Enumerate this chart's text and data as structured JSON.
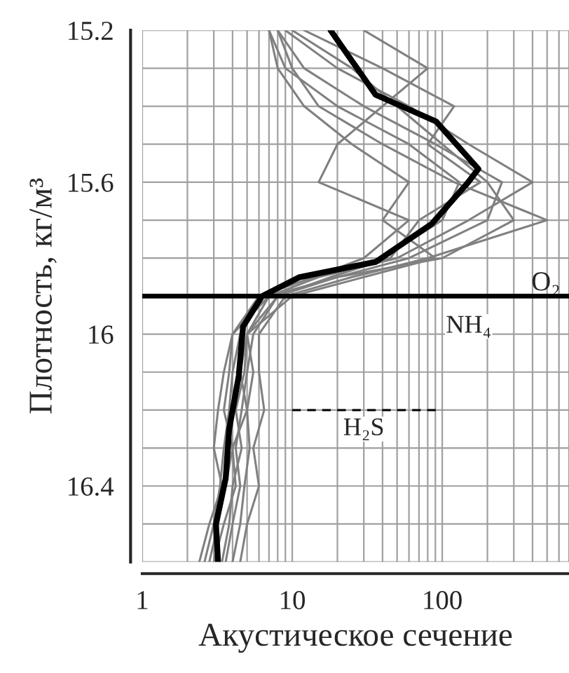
{
  "chart_data": {
    "type": "line",
    "xlabel": "Акустическое сечение",
    "ylabel": "Плотность, кг/м³",
    "log": "x",
    "grid": true,
    "marker": "none",
    "line_style": "solid",
    "xlim": [
      1,
      700
    ],
    "ylim": [
      16.6,
      15.2
    ],
    "xticks": [
      1,
      {
        "value": 2,
        "label": null
      },
      {
        "value": 3,
        "label": null
      },
      {
        "value": 4,
        "label": null
      },
      {
        "value": 5,
        "label": null
      },
      {
        "value": 6,
        "label": null
      },
      {
        "value": 7,
        "label": null
      },
      {
        "value": 8,
        "label": null
      },
      {
        "value": 9,
        "label": null
      },
      10,
      {
        "value": 20,
        "label": null
      },
      {
        "value": 30,
        "label": null
      },
      {
        "value": 40,
        "label": null
      },
      {
        "value": 50,
        "label": null
      },
      {
        "value": 60,
        "label": null
      },
      {
        "value": 70,
        "label": null
      },
      {
        "value": 80,
        "label": null
      },
      {
        "value": 90,
        "label": null
      },
      100,
      {
        "value": 200,
        "label": null
      },
      {
        "value": 300,
        "label": null
      },
      {
        "value": 400,
        "label": null
      },
      {
        "value": 500,
        "label": null
      },
      {
        "value": 600,
        "label": null
      },
      {
        "value": 700,
        "label": null
      }
    ],
    "yticks": [
      15.2,
      {
        "value": 15.3,
        "label": null
      },
      {
        "value": 15.4,
        "label": null
      },
      {
        "value": 15.5,
        "label": null
      },
      15.6,
      {
        "value": 15.7,
        "label": null
      },
      {
        "value": 15.8,
        "label": null
      },
      {
        "value": 15.9,
        "label": null
      },
      16,
      {
        "value": 16.1,
        "label": null
      },
      {
        "value": 16.2,
        "label": null
      },
      {
        "value": 16.3,
        "label": null
      },
      16.4,
      {
        "value": 16.5,
        "label": null
      },
      {
        "value": 16.6,
        "label": null
      }
    ],
    "series": [
      {
        "color": "#808080",
        "x": [
          8,
          12,
          30,
          90,
          250,
          200,
          60,
          20,
          8,
          5,
          4.5,
          5,
          4,
          4.2,
          3.5,
          3
        ],
        "values": [
          15.2,
          15.3,
          15.4,
          15.5,
          15.6,
          15.7,
          15.8,
          15.85,
          15.9,
          16.0,
          16.1,
          16.2,
          16.3,
          16.4,
          16.5,
          16.6
        ]
      },
      {
        "color": "#808080",
        "x": [
          7,
          9,
          20,
          60,
          130,
          100,
          40,
          12,
          6,
          4,
          3.8,
          3.5,
          4,
          3.6,
          3.2,
          2.8
        ],
        "values": [
          15.2,
          15.3,
          15.4,
          15.5,
          15.6,
          15.7,
          15.8,
          15.85,
          15.9,
          16.0,
          16.1,
          16.2,
          16.3,
          16.4,
          16.5,
          16.6
        ]
      },
      {
        "color": "#808080",
        "x": [
          9,
          20,
          60,
          150,
          400,
          150,
          50,
          15,
          7,
          5,
          5.5,
          5,
          5.2,
          4.8,
          4.5,
          4
        ],
        "values": [
          15.2,
          15.3,
          15.4,
          15.5,
          15.6,
          15.7,
          15.8,
          15.85,
          15.9,
          16.0,
          16.1,
          16.2,
          16.3,
          16.4,
          16.5,
          16.6
        ]
      },
      {
        "color": "#808080",
        "x": [
          8,
          10,
          15,
          40,
          120,
          500,
          80,
          25,
          9,
          6,
          6,
          6.5,
          5.5,
          6,
          5,
          4.5
        ],
        "values": [
          15.2,
          15.3,
          15.4,
          15.5,
          15.6,
          15.7,
          15.8,
          15.85,
          15.9,
          16.0,
          16.1,
          16.2,
          16.3,
          16.4,
          16.5,
          16.6
        ]
      },
      {
        "color": "#808080",
        "x": [
          30,
          80,
          40,
          20,
          15,
          60,
          30,
          14,
          6,
          4.5,
          4,
          3.8,
          3.5,
          3.3,
          3,
          2.6
        ],
        "values": [
          15.2,
          15.3,
          15.4,
          15.5,
          15.6,
          15.7,
          15.8,
          15.85,
          15.9,
          16.0,
          16.1,
          16.2,
          16.3,
          16.4,
          16.5,
          16.6
        ]
      },
      {
        "color": "#808080",
        "x": [
          10,
          25,
          50,
          100,
          200,
          300,
          100,
          20,
          7,
          4,
          3.5,
          3.2,
          3,
          3.4,
          2.8,
          2.4
        ],
        "values": [
          15.2,
          15.3,
          15.4,
          15.5,
          15.6,
          15.7,
          15.8,
          15.85,
          15.9,
          16.0,
          16.1,
          16.2,
          16.3,
          16.4,
          16.5,
          16.6
        ]
      },
      {
        "color": "#808080",
        "x": [
          7,
          8,
          12,
          25,
          60,
          40,
          90,
          30,
          10,
          5,
          4.8,
          4.2,
          4.6,
          4,
          3.8,
          3.4
        ],
        "values": [
          15.2,
          15.3,
          15.4,
          15.5,
          15.6,
          15.7,
          15.8,
          15.85,
          15.9,
          16.0,
          16.1,
          16.2,
          16.3,
          16.4,
          16.5,
          16.6
        ]
      },
      {
        "color": "#808080",
        "x": [
          12,
          40,
          120,
          80,
          180,
          70,
          45,
          18,
          8,
          5.5,
          5,
          4.6,
          4.2,
          4.5,
          4,
          3.6
        ],
        "values": [
          15.2,
          15.3,
          15.4,
          15.5,
          15.6,
          15.7,
          15.8,
          15.85,
          15.9,
          16.0,
          16.1,
          16.2,
          16.3,
          16.4,
          16.5,
          16.6
        ]
      },
      {
        "color": "#000000",
        "x": [
          18,
          36,
          91,
          174,
          149,
          85,
          36,
          11.2,
          6.3,
          4.7,
          4.4,
          3.8,
          3.6,
          3.1,
          3.2
        ],
        "values": [
          15.2,
          15.37,
          15.44,
          15.565,
          15.6,
          15.71,
          15.81,
          15.85,
          15.9,
          15.98,
          16.11,
          16.25,
          16.38,
          16.5,
          16.6
        ]
      },
      {
        "color": "#000000",
        "line_style": "dashed",
        "x": [
          10,
          100
        ],
        "values": [
          16.2,
          16.2
        ]
      }
    ],
    "ref_lines": [
      {
        "axis": "y",
        "value": 15.9,
        "label": "O₂",
        "color": "#000000"
      }
    ],
    "annotations": [
      {
        "text": "NH₄",
        "x": 150,
        "y": 15.98
      },
      {
        "text": "H₂S",
        "x": 30,
        "y": 16.25
      }
    ]
  }
}
